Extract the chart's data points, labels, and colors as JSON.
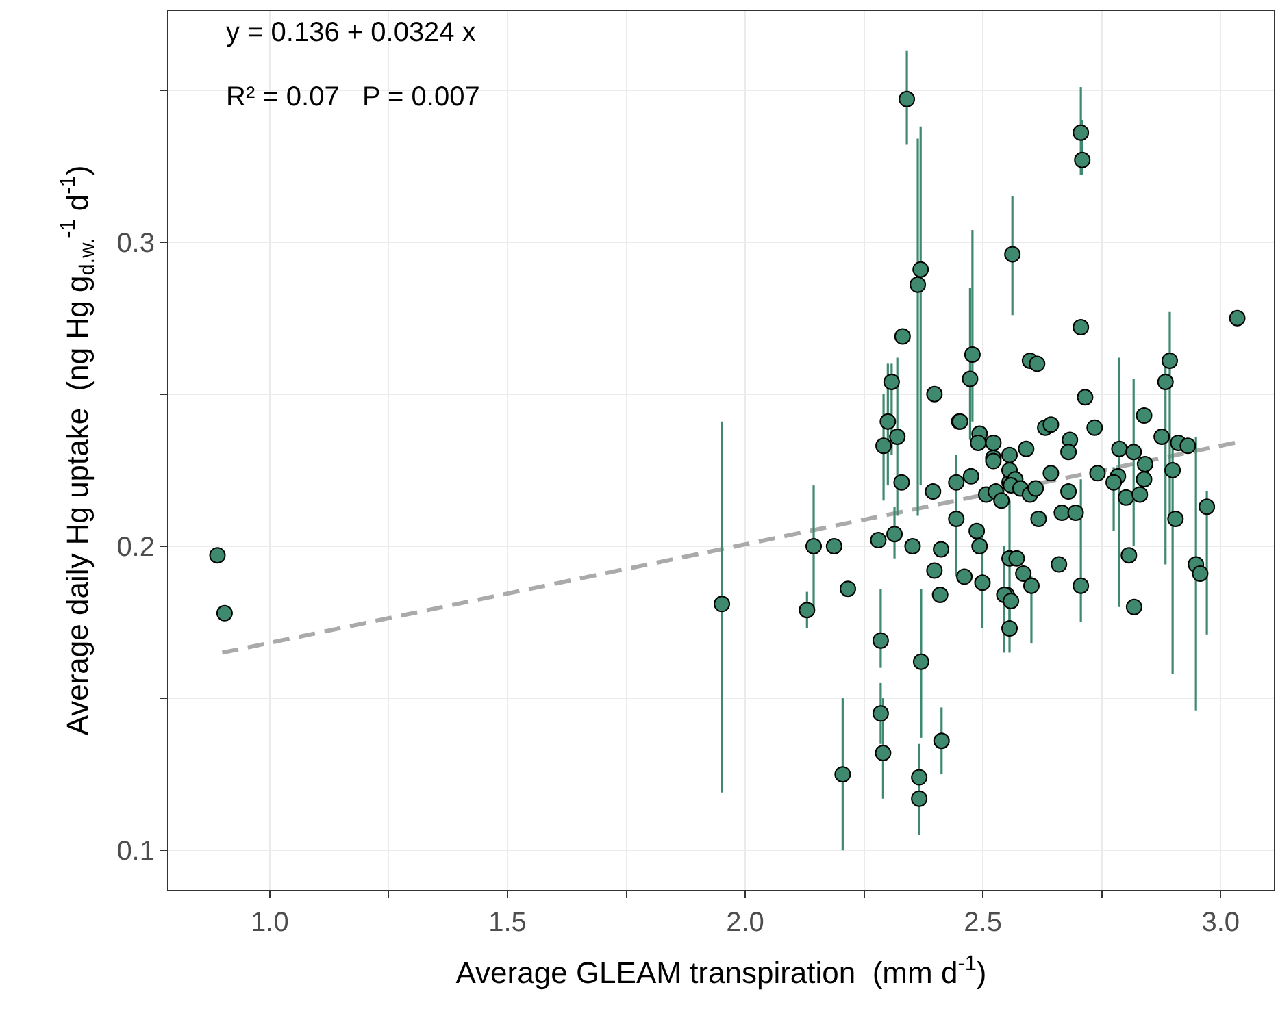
{
  "chart_data": {
    "type": "scatter",
    "xlabel": "Average GLEAM transpiration  (mm d$^{-1}$)",
    "ylabel": "Average daily Hg uptake  (ng Hg g$_{d.w.}$$^{-1}$ d$^{-1}$)",
    "annotations": [
      "y = 0.136 + 0.0324 x",
      "R² = 0.07   P = 0.007"
    ],
    "xlim": [
      0.787,
      3.112
    ],
    "xticks": [
      {
        "value": 1,
        "label": "1.0"
      },
      {
        "value": 1.25,
        "label": null
      },
      1.5,
      {
        "value": 1.75,
        "label": null
      },
      {
        "value": 2,
        "label": "2.0"
      },
      {
        "value": 2.25,
        "label": null
      },
      2.5,
      {
        "value": 2.75,
        "label": null
      },
      {
        "value": 3,
        "label": "3.0"
      }
    ],
    "ylim": [
      0.087,
      0.376
    ],
    "yticks": [
      0.1,
      {
        "value": 0.15,
        "label": null
      },
      0.2,
      {
        "value": 0.25,
        "label": null
      },
      0.3,
      {
        "value": 0.35,
        "label": null
      }
    ],
    "grid": true,
    "series": [
      {
        "type": "scatter",
        "color": "#3f8a6e",
        "marker": "circle",
        "x": [
          0.89,
          0.905,
          1.951,
          2.13,
          2.144,
          2.187,
          2.216,
          2.205,
          2.28,
          2.314,
          2.352,
          2.412,
          2.398,
          2.41,
          2.461,
          2.499,
          2.444,
          2.444,
          2.395,
          2.329,
          2.475,
          2.487,
          2.493,
          2.285,
          2.285,
          2.29,
          2.37,
          2.413,
          2.366,
          2.366,
          2.3,
          2.32,
          2.291,
          2.45,
          2.493,
          2.49,
          2.522,
          2.522,
          2.556,
          2.507,
          2.527,
          2.539,
          2.556,
          2.556,
          2.55,
          2.556,
          2.34,
          2.369,
          2.363,
          2.331,
          2.308,
          2.398,
          2.478,
          2.473,
          2.452,
          2.562,
          2.706,
          2.709,
          2.706,
          2.599,
          2.614,
          3.035,
          2.715,
          2.893,
          2.884,
          2.839,
          2.631,
          2.643,
          2.735,
          2.876,
          2.591,
          2.683,
          2.68,
          2.787,
          2.817,
          2.911,
          2.931,
          2.522,
          2.556,
          2.568,
          2.559,
          2.579,
          2.599,
          2.611,
          2.617,
          2.643,
          2.68,
          2.666,
          2.695,
          2.741,
          2.784,
          2.775,
          2.801,
          2.83,
          2.841,
          2.839,
          2.899,
          2.905,
          2.971,
          2.948,
          2.957,
          2.807,
          2.818,
          2.66,
          2.706,
          2.571,
          2.585,
          2.602,
          2.545,
          2.559
        ],
        "values": [
          0.197,
          0.178,
          0.181,
          0.179,
          0.2,
          0.2,
          0.186,
          0.125,
          0.202,
          0.204,
          0.2,
          0.199,
          0.192,
          0.184,
          0.19,
          0.188,
          0.221,
          0.209,
          0.218,
          0.221,
          0.223,
          0.205,
          0.2,
          0.169,
          0.145,
          0.132,
          0.162,
          0.136,
          0.124,
          0.117,
          0.241,
          0.236,
          0.233,
          0.241,
          0.237,
          0.234,
          0.234,
          0.229,
          0.23,
          0.217,
          0.218,
          0.215,
          0.221,
          0.196,
          0.184,
          0.173,
          0.347,
          0.291,
          0.286,
          0.269,
          0.254,
          0.25,
          0.263,
          0.255,
          0.241,
          0.296,
          0.336,
          0.327,
          0.272,
          0.261,
          0.26,
          0.275,
          0.249,
          0.261,
          0.254,
          0.243,
          0.239,
          0.24,
          0.239,
          0.236,
          0.232,
          0.235,
          0.231,
          0.232,
          0.231,
          0.234,
          0.233,
          0.228,
          0.225,
          0.222,
          0.22,
          0.219,
          0.217,
          0.219,
          0.209,
          0.224,
          0.218,
          0.211,
          0.211,
          0.224,
          0.223,
          0.221,
          0.216,
          0.217,
          0.227,
          0.222,
          0.225,
          0.209,
          0.213,
          0.194,
          0.191,
          0.197,
          0.18,
          0.194,
          0.187,
          0.196,
          0.191,
          0.187,
          0.184,
          0.182
        ],
        "errors": [
          null,
          null,
          [
            0.119,
            0.241
          ],
          [
            0.173,
            0.185
          ],
          [
            0.179,
            0.22
          ],
          null,
          null,
          [
            0.1,
            0.15
          ],
          null,
          [
            0.196,
            0.213
          ],
          null,
          null,
          null,
          null,
          null,
          [
            0.173,
            0.205
          ],
          null,
          [
            0.19,
            0.23
          ],
          null,
          null,
          null,
          null,
          null,
          [
            0.16,
            0.186
          ],
          [
            0.135,
            0.155
          ],
          [
            0.117,
            0.15
          ],
          [
            0.137,
            0.186
          ],
          [
            0.125,
            0.147
          ],
          [
            0.112,
            0.135
          ],
          [
            0.105,
            0.13
          ],
          [
            0.22,
            0.26
          ],
          [
            0.21,
            0.262
          ],
          [
            0.215,
            0.25
          ],
          null,
          null,
          null,
          null,
          null,
          null,
          null,
          null,
          null,
          null,
          [
            0.17,
            0.215
          ],
          null,
          [
            0.165,
            0.18
          ],
          [
            0.332,
            0.363
          ],
          [
            0.22,
            0.338
          ],
          [
            0.21,
            0.334
          ],
          null,
          [
            0.23,
            0.26
          ],
          null,
          [
            0.241,
            0.304
          ],
          [
            0.235,
            0.285
          ],
          null,
          [
            0.276,
            0.315
          ],
          [
            0.322,
            0.351
          ],
          [
            0.322,
            0.34
          ],
          null,
          null,
          null,
          null,
          null,
          [
            0.21,
            0.277
          ],
          [
            0.194,
            0.26
          ],
          null,
          null,
          null,
          null,
          null,
          null,
          null,
          null,
          [
            0.18,
            0.262
          ],
          [
            0.2,
            0.255
          ],
          null,
          null,
          null,
          null,
          null,
          null,
          null,
          null,
          null,
          null,
          null,
          null,
          null,
          null,
          null,
          null,
          [
            0.205,
            0.226
          ],
          null,
          null,
          null,
          null,
          [
            0.158,
            0.236
          ],
          null,
          [
            0.171,
            0.218
          ],
          [
            0.146,
            0.236
          ],
          null,
          null,
          null,
          null,
          [
            0.175,
            0.222
          ],
          null,
          null,
          [
            0.168,
            0.19
          ],
          [
            0.165,
            0.2
          ],
          null
        ]
      },
      {
        "type": "line",
        "color": "#aaaaaa",
        "line_style": "dashed",
        "x": [
          0.9,
          3.03
        ],
        "values": [
          0.165,
          0.234
        ]
      }
    ]
  }
}
